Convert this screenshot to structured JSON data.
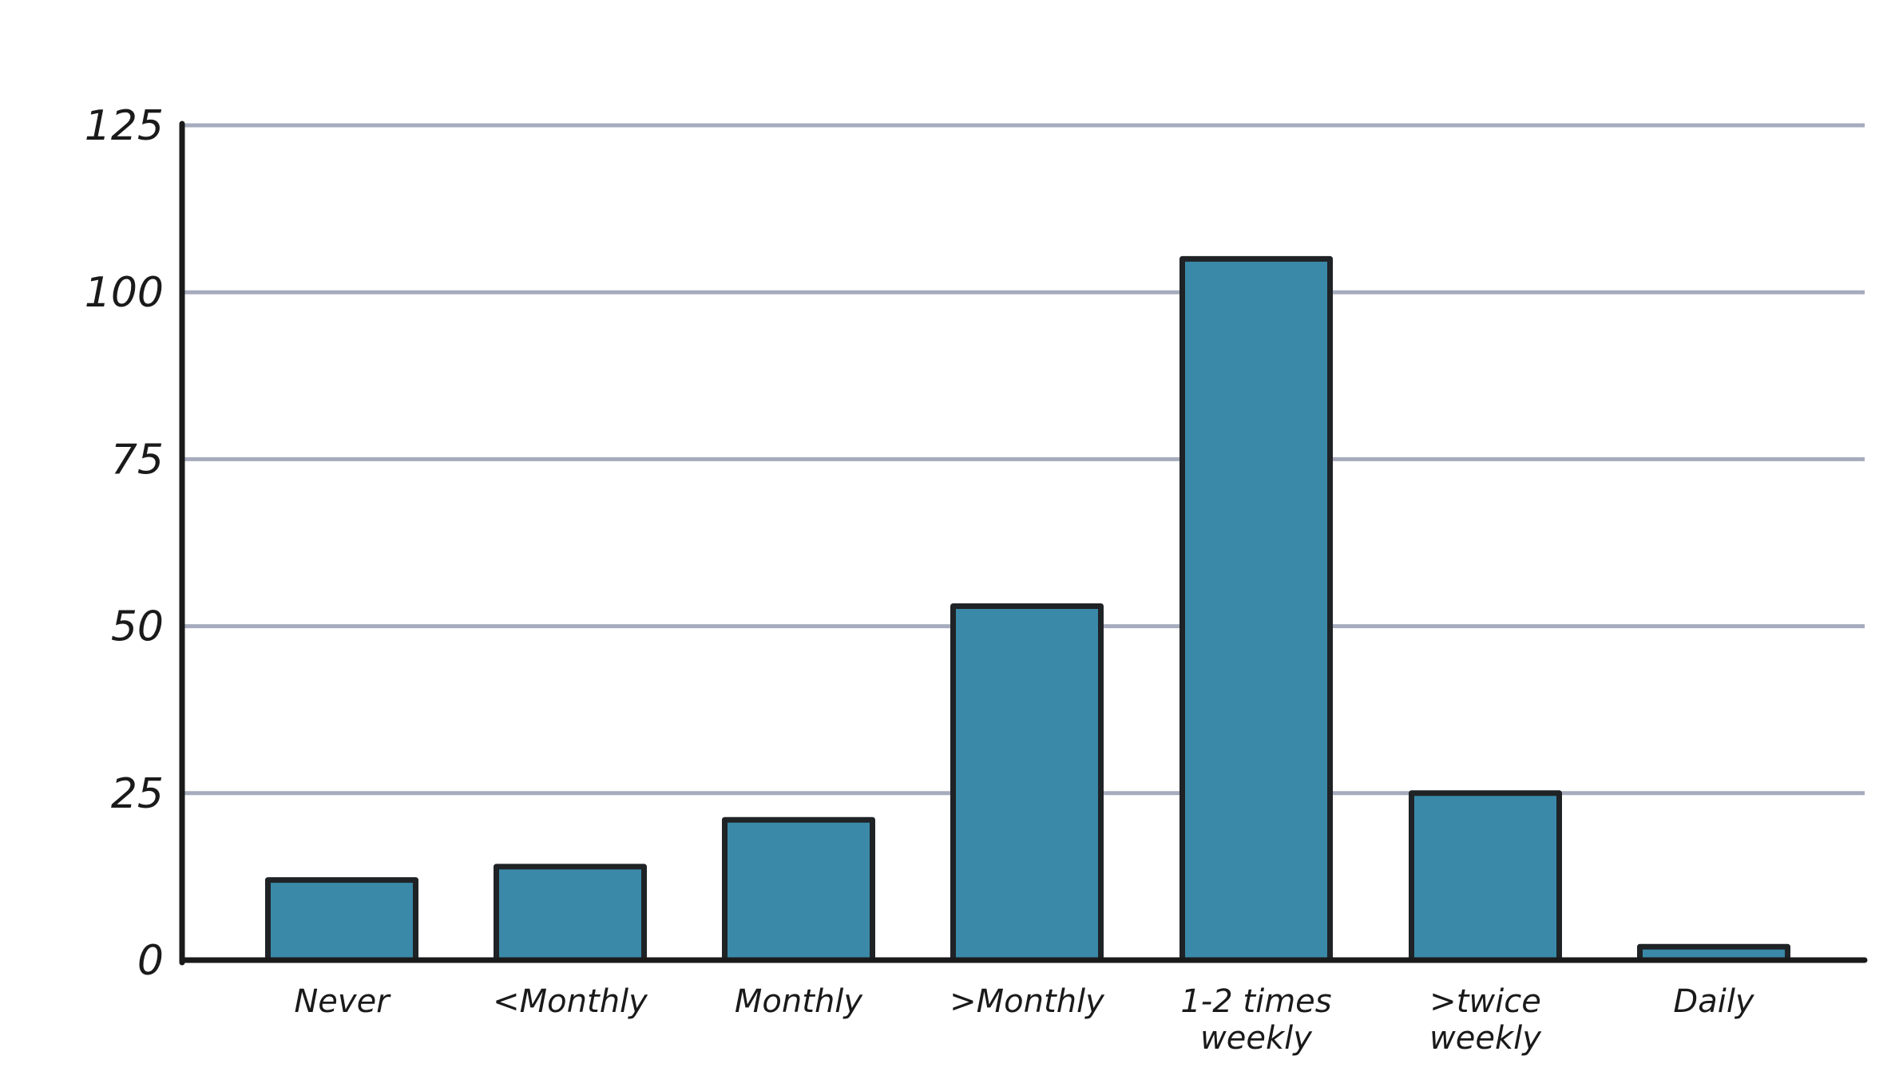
{
  "chart_data": {
    "type": "bar",
    "title": "",
    "xlabel": "",
    "ylabel": "",
    "categories": [
      [
        "Never"
      ],
      [
        "<Monthly"
      ],
      [
        "Monthly"
      ],
      [
        ">Monthly"
      ],
      [
        "1-2 times",
        "weekly"
      ],
      [
        ">twice",
        "weekly"
      ],
      [
        "Daily"
      ]
    ],
    "values": [
      12,
      14,
      21,
      53,
      105,
      25,
      2
    ],
    "ylim": [
      0,
      125
    ],
    "yticks": [
      "0",
      "25",
      "50",
      "75",
      "100",
      "125"
    ],
    "grid": true,
    "colors": {
      "bar_fill": "#3a89a8",
      "bar_stroke": "#1f2326",
      "axis": "#1a1a1a",
      "grid": "#a6abbd"
    }
  }
}
